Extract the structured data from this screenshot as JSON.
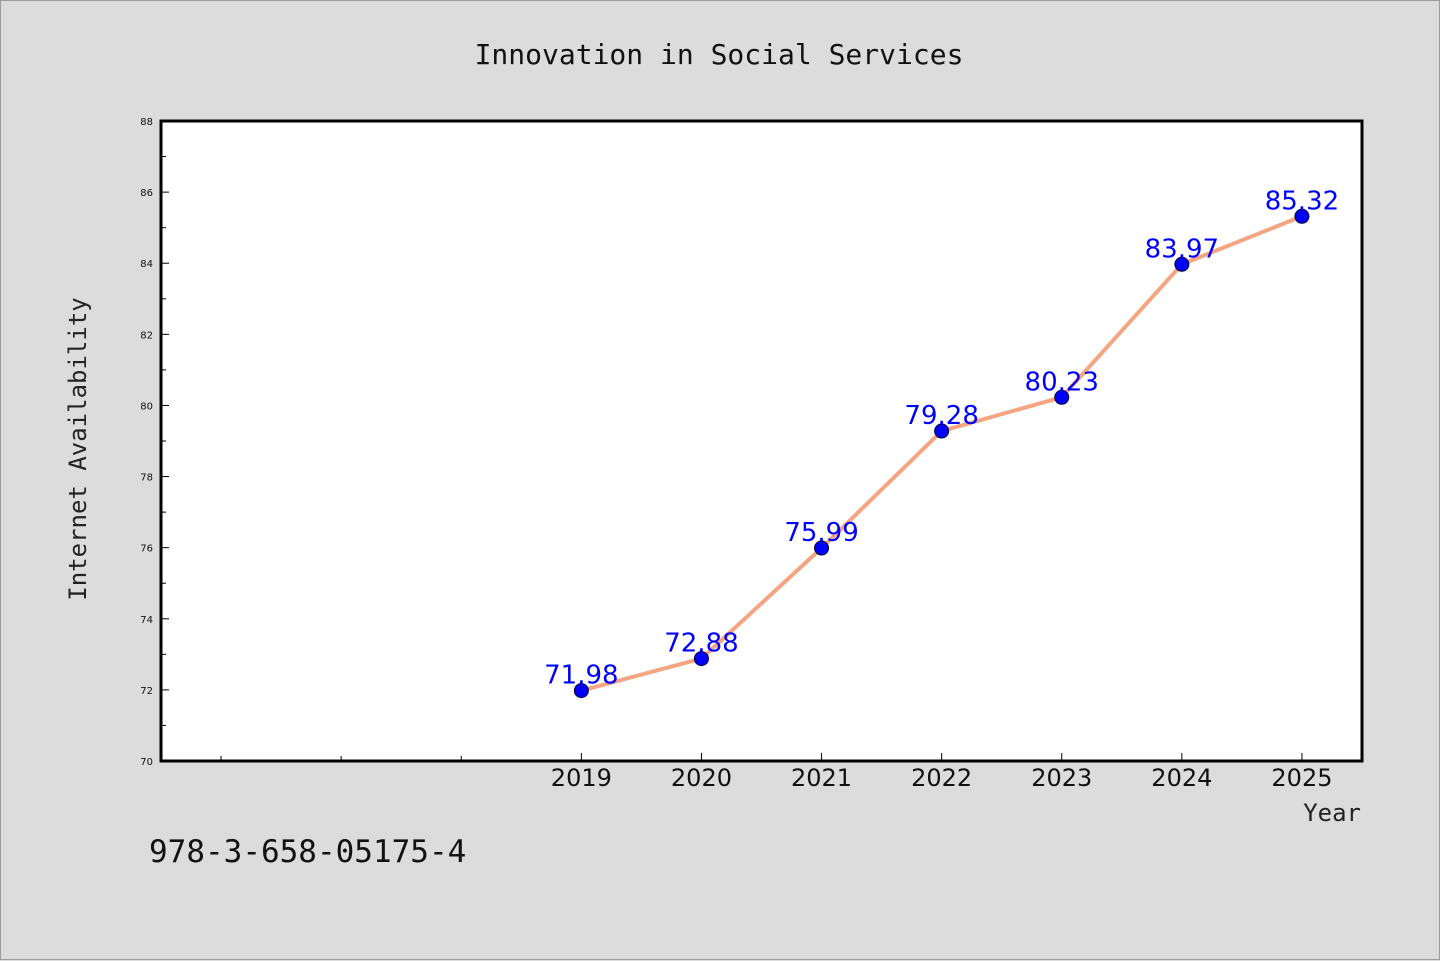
{
  "chart_data": {
    "type": "line",
    "title": "Innovation in Social Services",
    "xlabel": "Year",
    "ylabel": "Internet Availability",
    "x": [
      "2019",
      "2020",
      "2021",
      "2022",
      "2023",
      "2024",
      "2025"
    ],
    "series": [
      {
        "values": [
          71.98,
          72.88,
          75.99,
          79.28,
          80.23,
          83.97,
          85.32
        ],
        "data_labels": [
          "71.98",
          "72.88",
          "75.99",
          "79.28",
          "80.23",
          "83.97",
          "85.32"
        ]
      }
    ],
    "ylim": [
      70,
      88
    ],
    "yticks": [
      "70",
      "72",
      "74",
      "76",
      "78",
      "80",
      "82",
      "84",
      "86",
      "88"
    ],
    "grid": false,
    "legend": "none",
    "colors": {
      "line": "#f4a582",
      "marker": "#0000ff",
      "label": "#0000ff",
      "background": "#dcdcdc",
      "plot_area": "#ffffff"
    }
  },
  "footer": {
    "isbn": "978-3-658-05175-4"
  }
}
